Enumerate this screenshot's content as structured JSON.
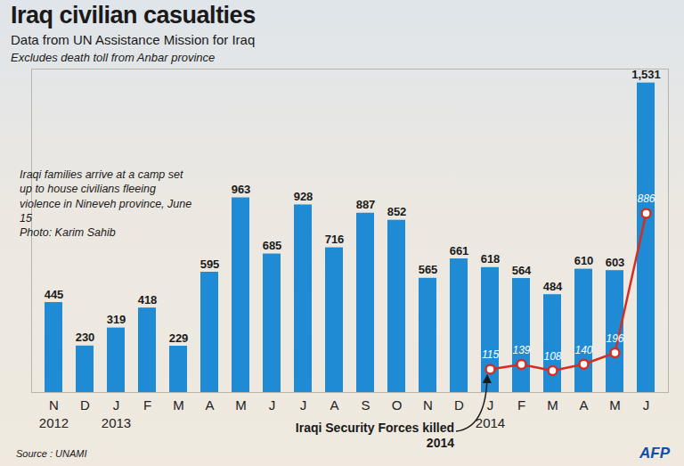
{
  "chart_data": {
    "type": "bar",
    "title": "Iraq civilian casualties",
    "subtitle": "Data from UN Assistance Mission for Iraq",
    "note": "Excludes death toll from Anbar province",
    "caption": "Iraqi families arrive at a camp set up to house civilians fleeing violence in Nineveh province, June 15",
    "photo_credit": "Photo: Karim Sahib",
    "source": "Source : UNAMI",
    "credit": "AFP",
    "categories": [
      "N",
      "D",
      "J",
      "F",
      "M",
      "A",
      "M",
      "J",
      "J",
      "A",
      "S",
      "O",
      "N",
      "D",
      "J",
      "F",
      "M",
      "A",
      "M",
      "J"
    ],
    "years": [
      "2012",
      null,
      "2013",
      null,
      null,
      null,
      null,
      null,
      null,
      null,
      null,
      null,
      null,
      null,
      "2014",
      null,
      null,
      null,
      null,
      null
    ],
    "values": [
      445,
      230,
      319,
      418,
      229,
      595,
      963,
      685,
      928,
      716,
      887,
      852,
      565,
      661,
      618,
      564,
      484,
      610,
      603,
      1531
    ],
    "value_labels": [
      "445",
      "230",
      "319",
      "418",
      "229",
      "595",
      "963",
      "685",
      "928",
      "716",
      "887",
      "852",
      "565",
      "661",
      "618",
      "564",
      "484",
      "610",
      "603",
      "1,531"
    ],
    "color": "#1f8bd4",
    "series": [
      {
        "name": "Iraqi Security Forces killed 2014",
        "type": "line",
        "color": "#d42e23",
        "marker": "circle",
        "line_style": "solid",
        "values": [
          null,
          null,
          null,
          null,
          null,
          null,
          null,
          null,
          null,
          null,
          null,
          null,
          null,
          null,
          115,
          139,
          108,
          140,
          196,
          886
        ]
      }
    ],
    "ylim": [
      0,
      1600
    ],
    "yticks": [],
    "grid": false,
    "data_labels": true,
    "tick_labels": "x"
  }
}
